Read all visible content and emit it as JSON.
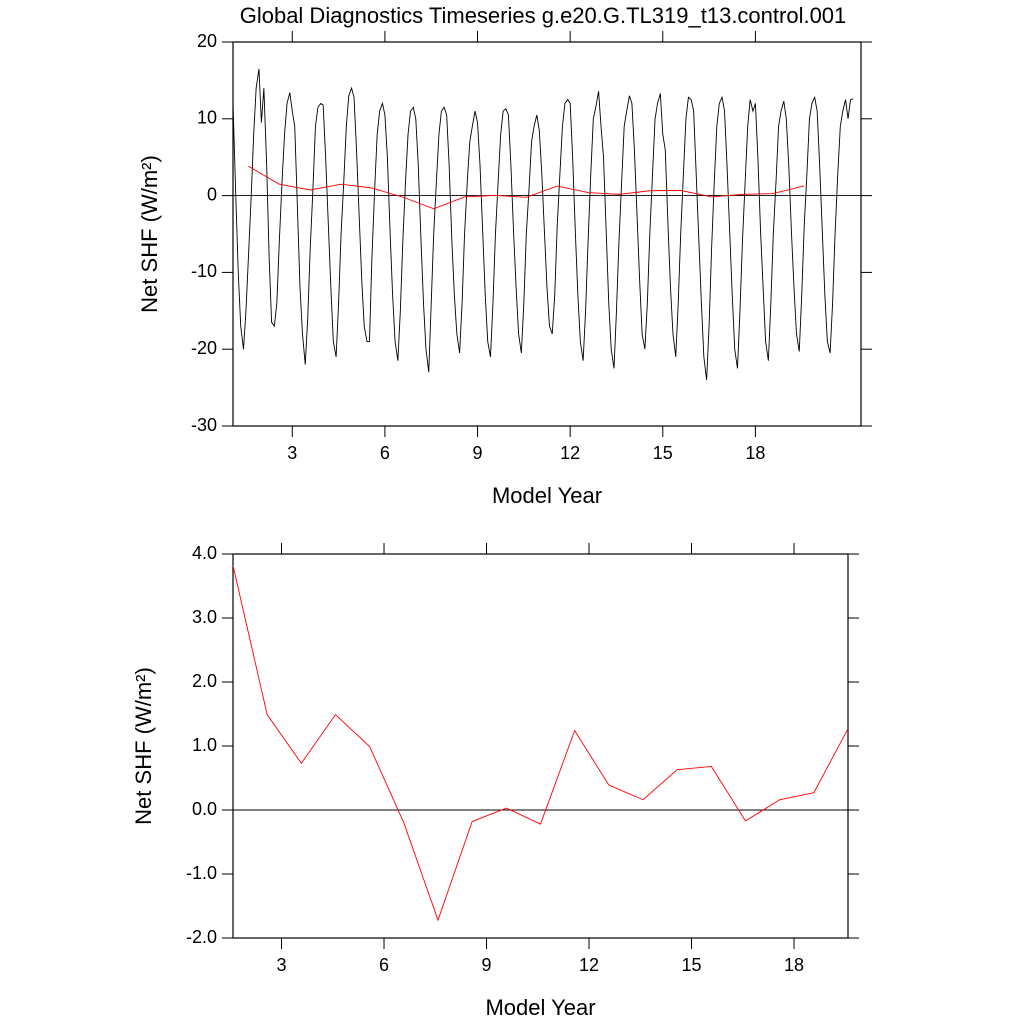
{
  "chart_data": [
    {
      "type": "line",
      "title": "Global Diagnostics Timeseries g.e20.G.TL319_t13.control.001",
      "xlabel": "Model Year",
      "ylabel": "Net SHF (W/m²)",
      "xlim": [
        1.08,
        21.42
      ],
      "ylim": [
        -30,
        20
      ],
      "xticks": [
        3,
        6,
        9,
        12,
        15,
        18
      ],
      "yticks": [
        -30,
        -20,
        -10,
        0,
        10,
        20
      ],
      "yref": 0,
      "series": [
        {
          "color": "#000000",
          "x": [
            1.08,
            1.17,
            1.25,
            1.33,
            1.42,
            1.5,
            1.58,
            1.67,
            1.75,
            1.83,
            1.92,
            2,
            2.08,
            2.17,
            2.25,
            2.33,
            2.42,
            2.5,
            2.58,
            2.67,
            2.75,
            2.83,
            2.92,
            3,
            3.08,
            3.17,
            3.25,
            3.33,
            3.42,
            3.5,
            3.58,
            3.67,
            3.75,
            3.83,
            3.92,
            4,
            4.08,
            4.17,
            4.25,
            4.33,
            4.42,
            4.5,
            4.58,
            4.67,
            4.75,
            4.83,
            4.92,
            5,
            5.08,
            5.17,
            5.25,
            5.33,
            5.42,
            5.5,
            5.58,
            5.67,
            5.75,
            5.83,
            5.92,
            6,
            6.08,
            6.17,
            6.25,
            6.33,
            6.42,
            6.5,
            6.58,
            6.67,
            6.75,
            6.83,
            6.92,
            7,
            7.08,
            7.17,
            7.25,
            7.33,
            7.42,
            7.5,
            7.58,
            7.67,
            7.75,
            7.83,
            7.92,
            8,
            8.08,
            8.17,
            8.25,
            8.33,
            8.42,
            8.5,
            8.58,
            8.67,
            8.75,
            8.83,
            8.92,
            9,
            9.08,
            9.17,
            9.25,
            9.33,
            9.42,
            9.5,
            9.58,
            9.67,
            9.75,
            9.83,
            9.92,
            10,
            10.08,
            10.17,
            10.25,
            10.33,
            10.42,
            10.5,
            10.58,
            10.67,
            10.75,
            10.83,
            10.92,
            11,
            11.08,
            11.17,
            11.25,
            11.33,
            11.42,
            11.5,
            11.58,
            11.67,
            11.75,
            11.83,
            11.92,
            12,
            12.08,
            12.17,
            12.25,
            12.33,
            12.42,
            12.5,
            12.58,
            12.67,
            12.75,
            12.83,
            12.92,
            13,
            13.08,
            13.17,
            13.25,
            13.33,
            13.42,
            13.5,
            13.58,
            13.67,
            13.75,
            13.83,
            13.92,
            14,
            14.08,
            14.17,
            14.25,
            14.33,
            14.42,
            14.5,
            14.58,
            14.67,
            14.75,
            14.83,
            14.92,
            15,
            15.08,
            15.17,
            15.25,
            15.33,
            15.42,
            15.5,
            15.58,
            15.67,
            15.75,
            15.83,
            15.92,
            16,
            16.08,
            16.17,
            16.25,
            16.33,
            16.42,
            16.5,
            16.58,
            16.67,
            16.75,
            16.83,
            16.92,
            17,
            17.08,
            17.17,
            17.25,
            17.33,
            17.42,
            17.5,
            17.58,
            17.67,
            17.75,
            17.83,
            17.92,
            18,
            18.08,
            18.17,
            18.25,
            18.33,
            18.42,
            18.5,
            18.58,
            18.67,
            18.75,
            18.83,
            18.92,
            19,
            19.08,
            19.17,
            19.25,
            19.33,
            19.42,
            19.5,
            19.58,
            19.67,
            19.75,
            19.83,
            19.92,
            20,
            20.08,
            20.17,
            20.25,
            20.33,
            20.42,
            20.5,
            20.58,
            20.67,
            20.75,
            20.83,
            20.92,
            21,
            21.08,
            21.17
          ],
          "values": [
            12,
            0,
            -10,
            -17,
            -20,
            -15,
            -8,
            0,
            8,
            14,
            16.5,
            9.5,
            14,
            4,
            -8,
            -16.5,
            -17,
            -14,
            -6,
            2,
            8,
            12,
            13.4,
            11,
            9,
            -2,
            -12,
            -18,
            -22,
            -16,
            -7,
            1,
            9,
            11.5,
            12,
            11.8,
            5,
            -4,
            -12,
            -19,
            -21,
            -14,
            -5,
            2,
            9,
            13,
            14,
            12.8,
            6,
            -3,
            -11,
            -17,
            -19,
            -19,
            -8,
            1,
            8,
            11,
            12,
            10.5,
            5,
            -5,
            -13,
            -19,
            -21.5,
            -15,
            -6,
            2,
            8,
            11,
            11.5,
            10,
            4,
            -6,
            -14,
            -20,
            -23,
            -14,
            -5,
            2,
            8,
            11,
            11.5,
            10.5,
            4,
            -6,
            -13,
            -18,
            -20.5,
            -14,
            -5,
            2,
            7,
            9,
            11,
            9.5,
            4,
            -5,
            -13,
            -19,
            -21,
            -14,
            -5,
            2,
            8,
            11,
            11.3,
            10.5,
            4,
            -5,
            -12,
            -18,
            -20.5,
            -14,
            -5,
            1,
            7,
            9,
            10.5,
            8.5,
            3,
            -5,
            -12,
            -17,
            -18,
            -13,
            -4,
            3,
            9,
            12,
            12.5,
            12,
            5,
            -5,
            -13,
            -19,
            -21.5,
            -15,
            -6,
            3,
            10,
            11.5,
            13.6,
            9,
            5,
            -5,
            -14,
            -20,
            -22.5,
            -15,
            -6,
            2,
            9,
            11,
            13,
            12,
            6,
            -3,
            -11,
            -18,
            -20,
            -14,
            -5,
            3,
            10,
            12,
            13.3,
            8,
            6,
            -4,
            -12,
            -18,
            -21,
            -14,
            -5,
            3,
            10,
            12.8,
            12.5,
            11,
            3,
            -6,
            -14,
            -21,
            -24,
            -17,
            -7,
            2,
            9,
            12,
            12.8,
            11,
            4,
            -5,
            -13,
            -20,
            -22.5,
            -15,
            -6,
            2,
            9,
            12.5,
            11,
            12,
            5,
            -5,
            -12,
            -19,
            -21.5,
            -14,
            -5,
            2,
            9,
            11,
            12.3,
            10,
            4,
            -5,
            -12,
            -18,
            -20.3,
            -13,
            -4,
            3,
            10,
            12,
            12.8,
            11,
            4,
            -5,
            -13,
            -19,
            -20.5,
            -14,
            -5,
            3,
            9,
            11,
            12.5,
            10,
            12.5,
            12.6
          ]
        },
        {
          "color": "#ff0000",
          "x": [
            1.58,
            2.58,
            3.58,
            4.58,
            5.58,
            6.58,
            7.58,
            8.58,
            9.58,
            10.58,
            11.58,
            12.58,
            13.58,
            14.58,
            15.58,
            16.58,
            17.58,
            18.58,
            19.58
          ],
          "values": [
            3.82,
            1.49,
            0.73,
            1.49,
            0.99,
            -0.2,
            -1.72,
            -0.18,
            0.03,
            -0.22,
            1.24,
            0.39,
            0.16,
            0.63,
            0.68,
            -0.17,
            0.16,
            0.27,
            1.27
          ]
        }
      ]
    },
    {
      "type": "line",
      "xlabel": "Model Year",
      "ylabel": "Net SHF (W/m²)",
      "xlim": [
        1.58,
        19.58
      ],
      "ylim": [
        -2,
        4
      ],
      "xticks": [
        3,
        6,
        9,
        12,
        15,
        18
      ],
      "yticks": [
        {
          "value": -2,
          "label": "-2.0"
        },
        {
          "value": -1,
          "label": "-1.0"
        },
        {
          "value": 0,
          "label": "0.0"
        },
        {
          "value": 1,
          "label": "1.0"
        },
        {
          "value": 2,
          "label": "2.0"
        },
        {
          "value": 3,
          "label": "3.0"
        },
        {
          "value": 4,
          "label": "4.0"
        }
      ],
      "yref": 0,
      "series": [
        {
          "color": "#ff0000",
          "x": [
            1.58,
            2.58,
            3.58,
            4.58,
            5.58,
            6.58,
            7.58,
            8.58,
            9.58,
            10.58,
            11.58,
            12.58,
            13.58,
            14.58,
            15.58,
            16.58,
            17.58,
            18.58,
            19.58
          ],
          "values": [
            3.82,
            1.49,
            0.73,
            1.49,
            0.99,
            -0.2,
            -1.72,
            -0.18,
            0.03,
            -0.22,
            1.24,
            0.39,
            0.16,
            0.63,
            0.68,
            -0.17,
            0.16,
            0.27,
            1.27
          ]
        }
      ]
    }
  ]
}
